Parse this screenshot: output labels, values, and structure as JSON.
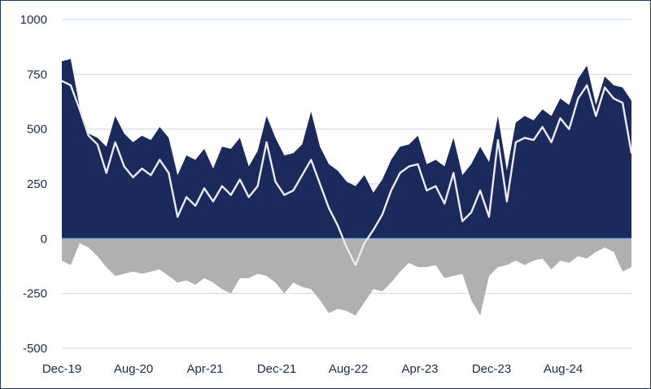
{
  "chart_data": {
    "type": "area",
    "title": "",
    "xlabel": "",
    "ylabel": "",
    "ylim": [
      -500,
      1000
    ],
    "yticks": [
      1000,
      750,
      500,
      250,
      0,
      -250,
      -500
    ],
    "ytick_labels": [
      "1000",
      "750",
      "500",
      "250",
      "0",
      "-250",
      "-500"
    ],
    "xtick_labels": [
      "Dec-19",
      "Aug-20",
      "Apr-21",
      "Dec-21",
      "Aug-22",
      "Apr-23",
      "Dec-23",
      "Aug-24"
    ],
    "grid": true,
    "legend": "none",
    "colors": {
      "long": "#1b2a5a",
      "short": "#b0b0b0",
      "net": "#e8ecf4",
      "grid": "#c9d7ec",
      "zero_line": "#8fb4e6"
    },
    "series": [
      {
        "type": "area",
        "x": [
          "Dec-19",
          "Jan-20",
          "Feb-20",
          "Mar-20",
          "Apr-20",
          "May-20",
          "Jun-20",
          "Jul-20",
          "Aug-20",
          "Sep-20",
          "Oct-20",
          "Nov-20",
          "Dec-20",
          "Jan-21",
          "Feb-21",
          "Mar-21",
          "Apr-21",
          "May-21",
          "Jun-21",
          "Jul-21",
          "Aug-21",
          "Sep-21",
          "Oct-21",
          "Nov-21",
          "Dec-21",
          "Jan-22",
          "Feb-22",
          "Mar-22",
          "Apr-22",
          "May-22",
          "Jun-22",
          "Jul-22",
          "Aug-22",
          "Sep-22",
          "Oct-22",
          "Nov-22",
          "Dec-22",
          "Jan-23",
          "Feb-23",
          "Mar-23",
          "Apr-23",
          "May-23",
          "Jun-23",
          "Jul-23",
          "Aug-23",
          "Sep-23",
          "Oct-23",
          "Nov-23",
          "Dec-23",
          "Jan-24",
          "Feb-24",
          "Mar-24",
          "Apr-24",
          "May-24",
          "Jun-24",
          "Jul-24",
          "Aug-24",
          "Sep-24",
          "Oct-24",
          "Nov-24",
          "Dec-24",
          "Jan-25",
          "Feb-25",
          "Mar-25",
          "Apr-25"
        ],
        "values": [
          810,
          820,
          600,
          480,
          460,
          420,
          560,
          480,
          440,
          470,
          450,
          510,
          460,
          290,
          380,
          360,
          410,
          320,
          420,
          410,
          460,
          330,
          400,
          560,
          460,
          380,
          390,
          430,
          580,
          420,
          340,
          310,
          260,
          240,
          290,
          210,
          270,
          360,
          420,
          430,
          470,
          340,
          360,
          330,
          460,
          290,
          340,
          420,
          350,
          560,
          310,
          530,
          560,
          540,
          590,
          560,
          640,
          610,
          730,
          790,
          610,
          740,
          700,
          690,
          630
        ]
      },
      {
        "type": "area",
        "x": [
          "Dec-19",
          "Jan-20",
          "Feb-20",
          "Mar-20",
          "Apr-20",
          "May-20",
          "Jun-20",
          "Jul-20",
          "Aug-20",
          "Sep-20",
          "Oct-20",
          "Nov-20",
          "Dec-20",
          "Jan-21",
          "Feb-21",
          "Mar-21",
          "Apr-21",
          "May-21",
          "Jun-21",
          "Jul-21",
          "Aug-21",
          "Sep-21",
          "Oct-21",
          "Nov-21",
          "Dec-21",
          "Jan-22",
          "Feb-22",
          "Mar-22",
          "Apr-22",
          "May-22",
          "Jun-22",
          "Jul-22",
          "Aug-22",
          "Sep-22",
          "Oct-22",
          "Nov-22",
          "Dec-22",
          "Jan-23",
          "Feb-23",
          "Mar-23",
          "Apr-23",
          "May-23",
          "Jun-23",
          "Jul-23",
          "Aug-23",
          "Sep-23",
          "Oct-23",
          "Nov-23",
          "Dec-23",
          "Jan-24",
          "Feb-24",
          "Mar-24",
          "Apr-24",
          "May-24",
          "Jun-24",
          "Jul-24",
          "Aug-24",
          "Sep-24",
          "Oct-24",
          "Nov-24",
          "Dec-24",
          "Jan-25",
          "Feb-25",
          "Mar-25",
          "Apr-25"
        ],
        "values": [
          -100,
          -120,
          -20,
          -40,
          -80,
          -130,
          -170,
          -160,
          -150,
          -160,
          -150,
          -140,
          -170,
          -200,
          -190,
          -210,
          -180,
          -200,
          -230,
          -250,
          -180,
          -180,
          -160,
          -170,
          -200,
          -250,
          -200,
          -220,
          -230,
          -280,
          -340,
          -320,
          -330,
          -350,
          -290,
          -230,
          -240,
          -200,
          -150,
          -110,
          -130,
          -130,
          -120,
          -180,
          -170,
          -160,
          -280,
          -350,
          -170,
          -130,
          -120,
          -100,
          -120,
          -100,
          -90,
          -140,
          -100,
          -110,
          -80,
          -90,
          -60,
          -40,
          -60,
          -150,
          -130
        ]
      },
      {
        "type": "line",
        "x": [
          "Dec-19",
          "Jan-20",
          "Feb-20",
          "Mar-20",
          "Apr-20",
          "May-20",
          "Jun-20",
          "Jul-20",
          "Aug-20",
          "Sep-20",
          "Oct-20",
          "Nov-20",
          "Dec-20",
          "Jan-21",
          "Feb-21",
          "Mar-21",
          "Apr-21",
          "May-21",
          "Jun-21",
          "Jul-21",
          "Aug-21",
          "Sep-21",
          "Oct-21",
          "Nov-21",
          "Dec-21",
          "Jan-22",
          "Feb-22",
          "Mar-22",
          "Apr-22",
          "May-22",
          "Jun-22",
          "Jul-22",
          "Aug-22",
          "Sep-22",
          "Oct-22",
          "Nov-22",
          "Dec-22",
          "Jan-23",
          "Feb-23",
          "Mar-23",
          "Apr-23",
          "May-23",
          "Jun-23",
          "Jul-23",
          "Aug-23",
          "Sep-23",
          "Oct-23",
          "Nov-23",
          "Dec-23",
          "Jan-24",
          "Feb-24",
          "Mar-24",
          "Apr-24",
          "May-24",
          "Jun-24",
          "Jul-24",
          "Aug-24",
          "Sep-24",
          "Oct-24",
          "Nov-24",
          "Dec-24",
          "Jan-25",
          "Feb-25",
          "Mar-25",
          "Apr-25"
        ],
        "values": [
          720,
          700,
          590,
          470,
          430,
          300,
          440,
          330,
          280,
          320,
          290,
          360,
          300,
          100,
          190,
          150,
          230,
          170,
          240,
          200,
          270,
          190,
          240,
          440,
          260,
          200,
          220,
          290,
          360,
          250,
          140,
          60,
          -40,
          -120,
          -20,
          40,
          110,
          220,
          300,
          330,
          340,
          220,
          240,
          160,
          300,
          80,
          120,
          220,
          100,
          450,
          170,
          440,
          460,
          450,
          510,
          440,
          550,
          500,
          640,
          700,
          560,
          690,
          640,
          620,
          390
        ]
      }
    ]
  }
}
